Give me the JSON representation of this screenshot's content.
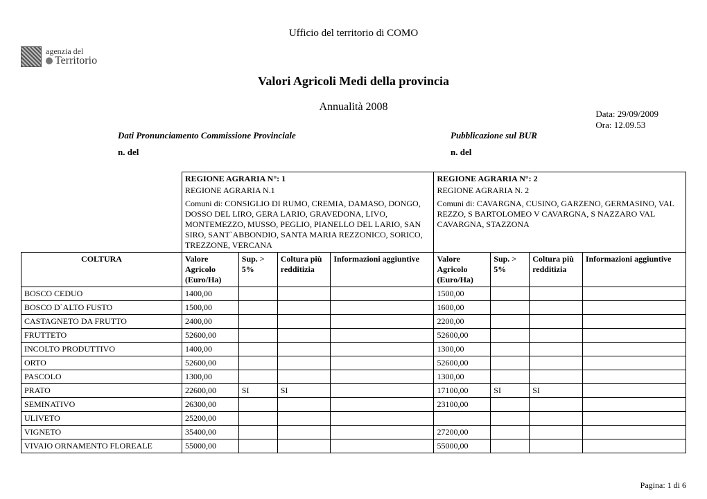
{
  "header": {
    "office": "Ufficio del territorio di  COMO",
    "logo_line1": "agenzia del",
    "logo_line2": "Territorio",
    "date_label": "Data: 29/09/2009",
    "time_label": "Ora: 12.09.53",
    "title": "Valori Agricoli Medi della provincia",
    "subtitle": "Annualità  2008",
    "pron_label": "Dati Pronunciamento Commissione Provinciale",
    "pub_label": "Pubblicazione sul BUR",
    "ndel": "n. del"
  },
  "regions": [
    {
      "num_label": "REGIONE AGRARIA N°:  1",
      "name": "REGIONE AGRARIA N.1",
      "comuni": "Comuni di: CONSIGLIO DI RUMO, CREMIA, DAMASO, DONGO, DOSSO DEL LIRO, GERA LARIO, GRAVEDONA, LIVO, MONTEMEZZO, MUSSO, PEGLIO, PIANELLO DEL LARIO, SAN SIRO, SANT`ABBONDIO, SANTA MARIA REZZONICO, SORICO, TREZZONE, VERCANA"
    },
    {
      "num_label": "REGIONE AGRARIA N°: 2",
      "name": "REGIONE AGRARIA N. 2",
      "comuni": "Comuni di: CAVARGNA, CUSINO, GARZENO, GERMASINO, VAL REZZO, S BARTOLOMEO V CAVARGNA, S NAZZARO VAL CAVARGNA, STAZZONA"
    }
  ],
  "col_headers": {
    "coltura": "COLTURA",
    "valore": "Valore Agricolo (Euro/Ha)",
    "sup": "Sup. > 5%",
    "redd": "Coltura più redditizia",
    "info": "Informazioni aggiuntive"
  },
  "rows": [
    {
      "coltura": "BOSCO CEDUO",
      "v1": "1400,00",
      "s1": "",
      "r1": "",
      "i1": "",
      "v2": "1500,00",
      "s2": "",
      "r2": "",
      "i2": ""
    },
    {
      "coltura": "BOSCO D`ALTO FUSTO",
      "v1": "1500,00",
      "s1": "",
      "r1": "",
      "i1": "",
      "v2": "1600,00",
      "s2": "",
      "r2": "",
      "i2": ""
    },
    {
      "coltura": "CASTAGNETO DA FRUTTO",
      "v1": "2400,00",
      "s1": "",
      "r1": "",
      "i1": "",
      "v2": "2200,00",
      "s2": "",
      "r2": "",
      "i2": ""
    },
    {
      "coltura": "FRUTTETO",
      "v1": "52600,00",
      "s1": "",
      "r1": "",
      "i1": "",
      "v2": "52600,00",
      "s2": "",
      "r2": "",
      "i2": ""
    },
    {
      "coltura": "INCOLTO PRODUTTIVO",
      "v1": "1400,00",
      "s1": "",
      "r1": "",
      "i1": "",
      "v2": "1300,00",
      "s2": "",
      "r2": "",
      "i2": ""
    },
    {
      "coltura": "ORTO",
      "v1": "52600,00",
      "s1": "",
      "r1": "",
      "i1": "",
      "v2": "52600,00",
      "s2": "",
      "r2": "",
      "i2": ""
    },
    {
      "coltura": "PASCOLO",
      "v1": "1300,00",
      "s1": "",
      "r1": "",
      "i1": "",
      "v2": "1300,00",
      "s2": "",
      "r2": "",
      "i2": ""
    },
    {
      "coltura": "PRATO",
      "v1": "22600,00",
      "s1": "SI",
      "r1": "SI",
      "i1": "",
      "v2": "17100,00",
      "s2": "SI",
      "r2": "SI",
      "i2": ""
    },
    {
      "coltura": "SEMINATIVO",
      "v1": "26300,00",
      "s1": "",
      "r1": "",
      "i1": "",
      "v2": "23100,00",
      "s2": "",
      "r2": "",
      "i2": ""
    },
    {
      "coltura": "ULIVETO",
      "v1": "25200,00",
      "s1": "",
      "r1": "",
      "i1": "",
      "v2": "",
      "s2": "",
      "r2": "",
      "i2": ""
    },
    {
      "coltura": "VIGNETO",
      "v1": "35400,00",
      "s1": "",
      "r1": "",
      "i1": "",
      "v2": "27200,00",
      "s2": "",
      "r2": "",
      "i2": ""
    },
    {
      "coltura": "VIVAIO ORNAMENTO FLOREALE",
      "v1": "55000,00",
      "s1": "",
      "r1": "",
      "i1": "",
      "v2": "55000,00",
      "s2": "",
      "r2": "",
      "i2": ""
    }
  ],
  "footer": {
    "page": "Pagina: 1 di 6"
  }
}
